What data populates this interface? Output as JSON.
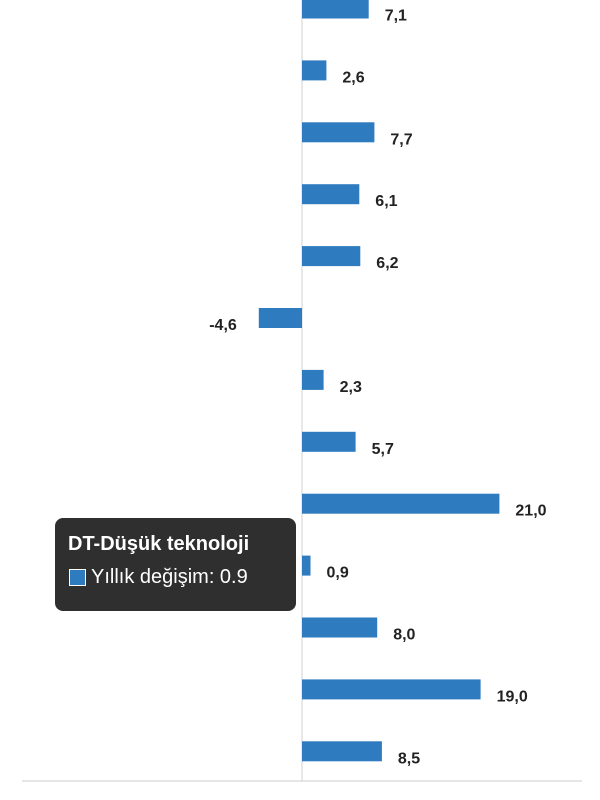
{
  "chart_data": {
    "type": "bar",
    "orientation": "horizontal",
    "series": [
      {
        "name": "Yıllık değişim",
        "color": "#2e7bbf",
        "values": [
          7.1,
          2.6,
          7.7,
          6.1,
          6.2,
          -4.6,
          2.3,
          5.7,
          21.0,
          0.9,
          8.0,
          19.0,
          8.5
        ]
      }
    ],
    "value_labels": [
      "7,1",
      "2,6",
      "7,7",
      "6,1",
      "6,2",
      "-4,6",
      "2,3",
      "5,7",
      "21,0",
      "0,9",
      "8,0",
      "19,0",
      "8,5"
    ],
    "grid": false
  },
  "tooltip": {
    "title": "DT-Düşük teknoloji",
    "series_label": "Yıllık değişim: 0.9",
    "swatch_color": "#2e7bbf"
  },
  "colors": {
    "bar": "#2e7bbf",
    "zero_line": "#cccccc",
    "axis": "#cccccc",
    "tooltip_bg": "#2f2f2f"
  }
}
